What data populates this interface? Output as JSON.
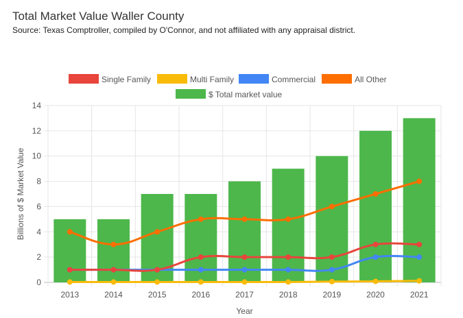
{
  "header": {
    "title": "Total Market Value Waller County",
    "subtitle": "Source: Texas Comptroller, compiled by O'Connor, and not affiliated with any appraisal district."
  },
  "chart_data": {
    "type": "bar",
    "categories": [
      "2013",
      "2014",
      "2015",
      "2016",
      "2017",
      "2018",
      "2019",
      "2020",
      "2021"
    ],
    "xlabel": "Year",
    "ylabel": "Billions of $ Market Value",
    "ylim": [
      0,
      14
    ],
    "yticks": [
      "0",
      "2",
      "4",
      "6",
      "8",
      "10",
      "12",
      "14"
    ],
    "grid": true,
    "legend": "top",
    "series": [
      {
        "name": "Single Family",
        "type": "line",
        "color": "#e8453c",
        "values": [
          1,
          1,
          1,
          2,
          2,
          2,
          2,
          3,
          3
        ]
      },
      {
        "name": "Multi Family",
        "type": "line",
        "color": "#f9bb0a",
        "values": [
          0.03,
          0.03,
          0.03,
          0.03,
          0.03,
          0.03,
          0.06,
          0.08,
          0.12
        ]
      },
      {
        "name": "Commercial",
        "type": "line",
        "color": "#4286f5",
        "values": [
          1,
          1,
          1,
          1,
          1,
          1,
          1,
          2,
          2
        ]
      },
      {
        "name": "All Other",
        "type": "line",
        "color": "#fe6e00",
        "values": [
          4,
          3,
          4,
          5,
          5,
          5,
          6,
          7,
          8
        ]
      },
      {
        "name": "$ Total market value",
        "type": "bar",
        "color": "#4db74b",
        "values": [
          5,
          5,
          7,
          7,
          8,
          9,
          10,
          12,
          13
        ]
      }
    ]
  }
}
